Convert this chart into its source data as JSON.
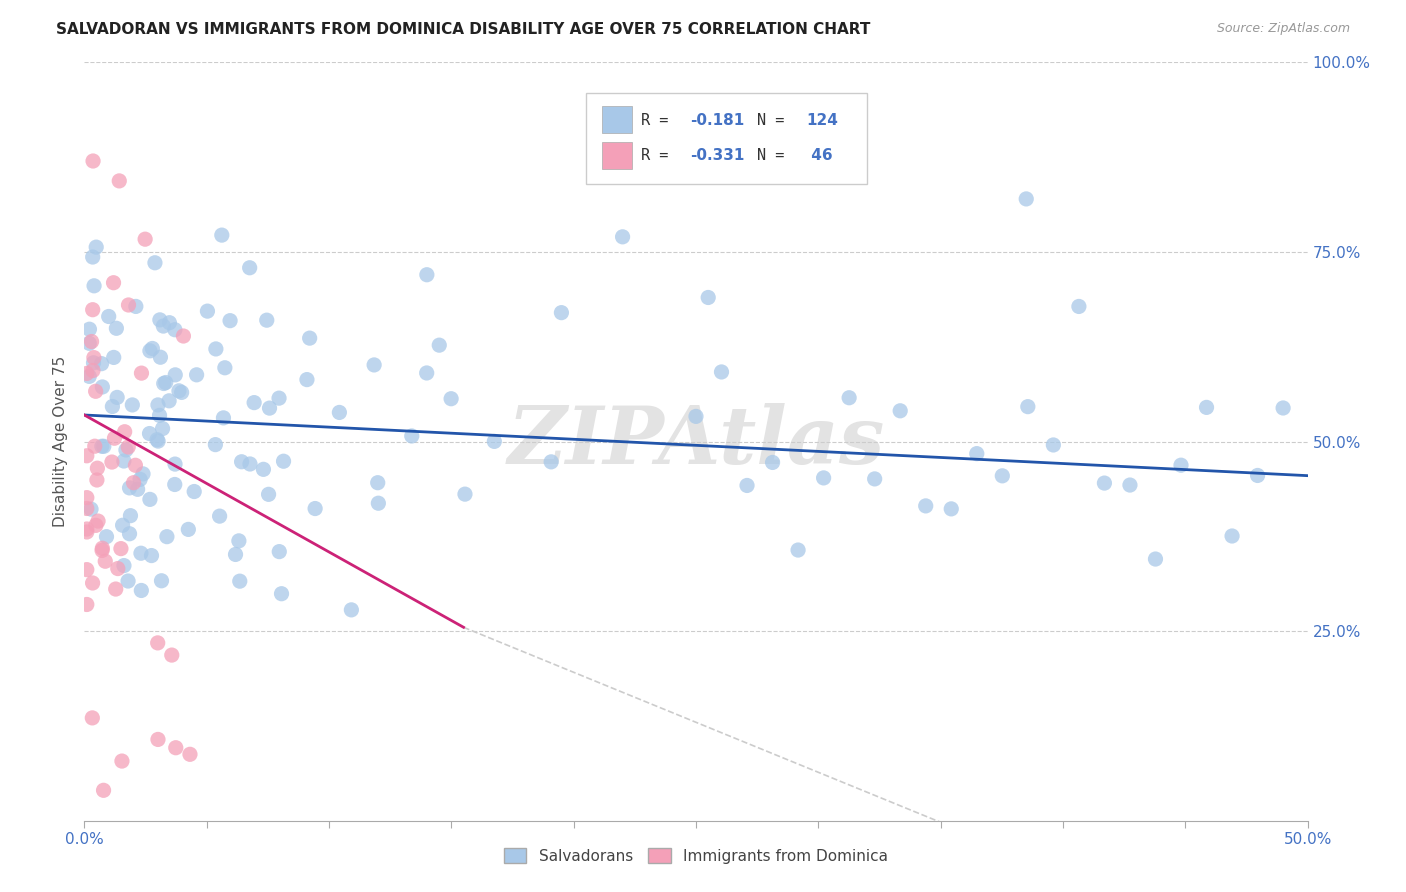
{
  "title": "SALVADORAN VS IMMIGRANTS FROM DOMINICA DISABILITY AGE OVER 75 CORRELATION CHART",
  "source": "Source: ZipAtlas.com",
  "ylabel": "Disability Age Over 75",
  "watermark": "ZIPAtlas",
  "legend_label1": "Salvadorans",
  "legend_label2": "Immigrants from Dominica",
  "blue_scatter_color": "#a8c8e8",
  "pink_scatter_color": "#f4a0b8",
  "blue_line_color": "#2255aa",
  "pink_line_color": "#cc2277",
  "dash_line_color": "#cccccc",
  "title_color": "#222222",
  "axis_color": "#4472c4",
  "grid_color": "#cccccc",
  "xlim": [
    0.0,
    0.5
  ],
  "ylim": [
    0.0,
    1.0
  ],
  "blue_line": [
    0.0,
    0.5,
    0.535,
    0.455
  ],
  "pink_line_solid": [
    0.0,
    0.155,
    0.535,
    0.255
  ],
  "pink_line_dash": [
    0.155,
    0.5,
    0.255,
    -0.2
  ],
  "r1": -0.181,
  "n1": 124,
  "r2": -0.331,
  "n2": 46
}
